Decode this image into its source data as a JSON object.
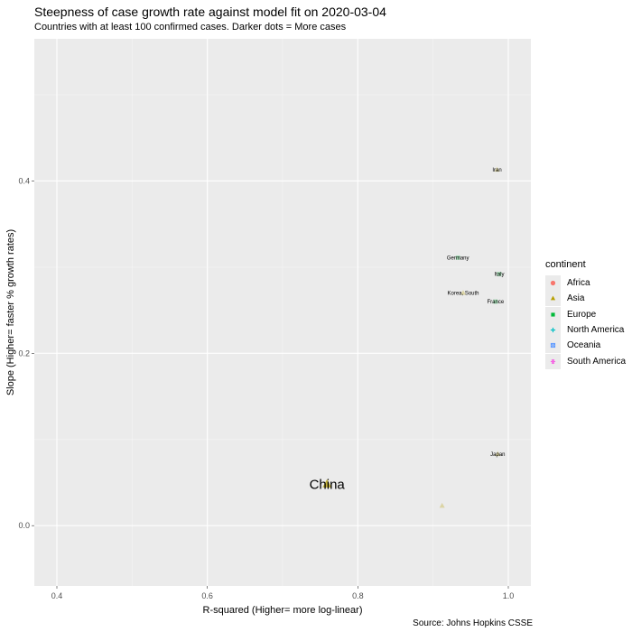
{
  "chart_data": {
    "type": "scatter",
    "title": "Steepness of case growth rate against model fit on 2020-03-04",
    "subtitle": "Countries with at least 100 confirmed cases. Darker dots = More cases",
    "xlabel": "R-squared (Higher= more log-linear)",
    "ylabel": "Slope (Higher= faster % growth rates)",
    "caption": "Source: Johns Hopkins CSSE",
    "xlim": [
      0.37,
      1.03
    ],
    "ylim": [
      -0.07,
      0.565
    ],
    "x_ticks": [
      {
        "value": 0.4,
        "label": "0.4"
      },
      {
        "value": 0.6,
        "label": "0.6"
      },
      {
        "value": 0.8,
        "label": "0.8"
      },
      {
        "value": 1.0,
        "label": "1.0"
      }
    ],
    "y_ticks": [
      {
        "value": 0.0,
        "label": "0.0"
      },
      {
        "value": 0.2,
        "label": "0.2"
      },
      {
        "value": 0.4,
        "label": "0.4"
      }
    ],
    "grid": true,
    "legend_title": "continent",
    "legend_position": "right",
    "legend": [
      {
        "name": "Africa",
        "color": "#F8766D",
        "shape": "circle"
      },
      {
        "name": "Asia",
        "color": "#B79F00",
        "shape": "triangle"
      },
      {
        "name": "Europe",
        "color": "#00BA38",
        "shape": "square"
      },
      {
        "name": "North America",
        "color": "#00BFC4",
        "shape": "plus"
      },
      {
        "name": "Oceania",
        "color": "#619CFF",
        "shape": "boxcross"
      },
      {
        "name": "South America",
        "color": "#F564E3",
        "shape": "asterisk"
      }
    ],
    "points": [
      {
        "label": "Iran",
        "x": 0.985,
        "y": 0.413,
        "continent": "Asia",
        "label_size": 6
      },
      {
        "label": "Germany",
        "x": 0.933,
        "y": 0.311,
        "continent": "Europe",
        "label_size": 6
      },
      {
        "label": "Italy",
        "x": 0.988,
        "y": 0.292,
        "continent": "Europe",
        "label_size": 6
      },
      {
        "label": "Korea, South",
        "x": 0.94,
        "y": 0.27,
        "continent": "Asia",
        "label_size": 6
      },
      {
        "label": "France",
        "x": 0.983,
        "y": 0.26,
        "continent": "Europe",
        "label_size": 6
      },
      {
        "label": "Japan",
        "x": 0.986,
        "y": 0.083,
        "continent": "Asia",
        "label_size": 6
      },
      {
        "label": "China",
        "x": 0.759,
        "y": 0.048,
        "continent": "Asia",
        "label_size": 15
      },
      {
        "label": "",
        "x": 0.912,
        "y": 0.023,
        "continent": "Asia",
        "label_size": 6
      }
    ]
  }
}
